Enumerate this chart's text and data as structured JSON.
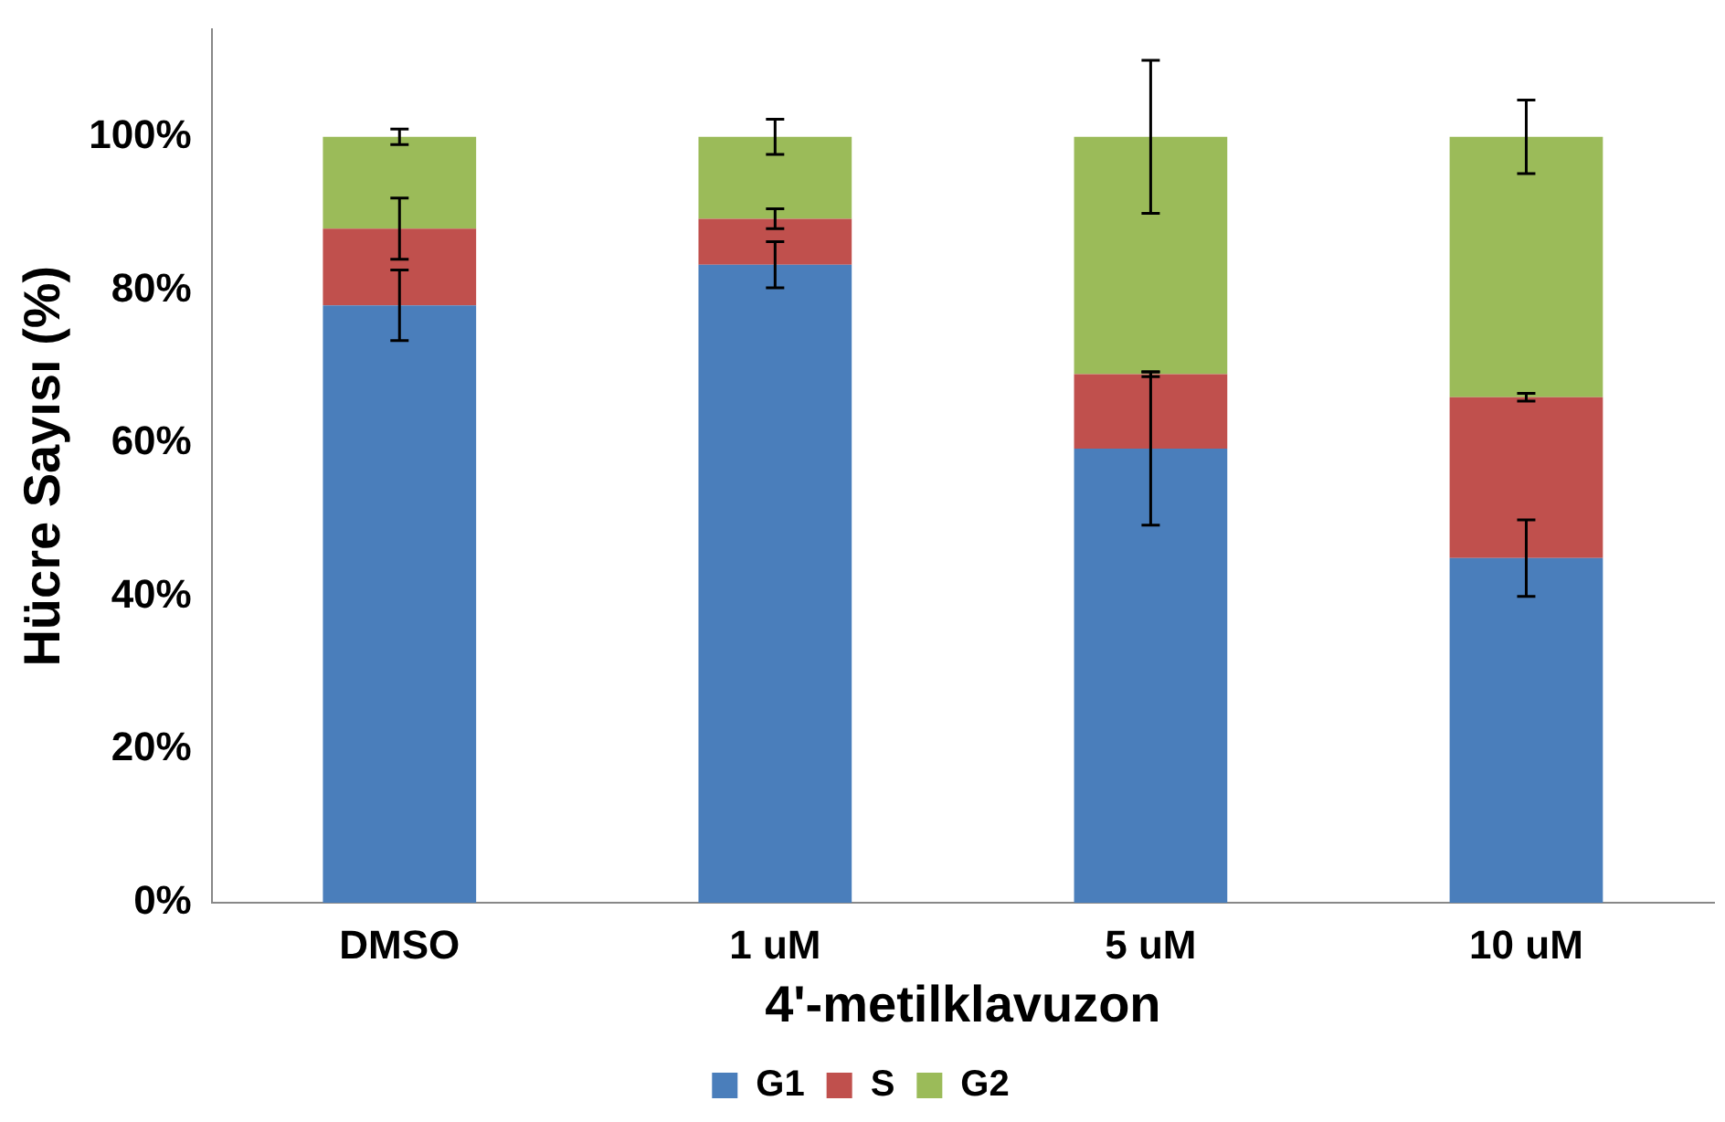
{
  "chart_data": {
    "type": "bar",
    "stacked": true,
    "xlabel": "4'-metilklavuzon",
    "ylabel": "Hücre Sayısı (%)",
    "categories": [
      "DMSO",
      "1 uM",
      "5 uM",
      "10 uM"
    ],
    "series": [
      {
        "name": "G1",
        "color": "#4a7ebb",
        "values": [
          78,
          83.3,
          59.3,
          45
        ],
        "errors": [
          4.6,
          3,
          10,
          5
        ]
      },
      {
        "name": "S",
        "color": "#c0504d",
        "values": [
          10,
          6,
          9.7,
          21
        ],
        "errors": [
          4,
          1.3,
          0.3,
          0.5
        ]
      },
      {
        "name": "G2",
        "color": "#9bbb59",
        "values": [
          12,
          10.7,
          31,
          34
        ],
        "errors": [
          1,
          2.3,
          10,
          4.8
        ]
      }
    ],
    "ylim": [
      0,
      114
    ],
    "yticks": [
      {
        "value": 0,
        "label": "0%"
      },
      {
        "value": 20,
        "label": "20%"
      },
      {
        "value": 40,
        "label": "40%"
      },
      {
        "value": 60,
        "label": "60%"
      },
      {
        "value": 80,
        "label": "80%"
      },
      {
        "value": 100,
        "label": "100%"
      }
    ],
    "grid": false,
    "legend": "bottom"
  }
}
